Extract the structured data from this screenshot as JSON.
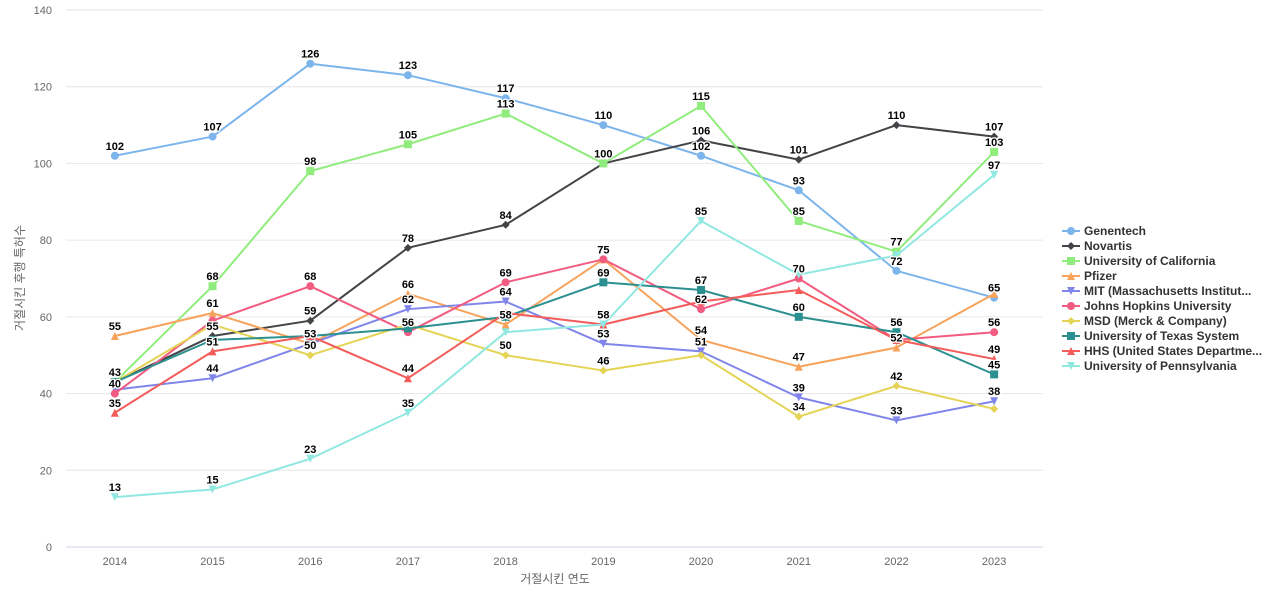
{
  "chart_data": {
    "type": "line",
    "title": "",
    "xlabel": "거절시킨 연도",
    "ylabel": "거절시킨 후행 특허수",
    "categories": [
      "2014",
      "2015",
      "2016",
      "2017",
      "2018",
      "2019",
      "2020",
      "2021",
      "2022",
      "2023"
    ],
    "ylim": [
      0,
      140
    ],
    "yticks": [
      0,
      20,
      40,
      60,
      80,
      100,
      120,
      140
    ],
    "grid": true,
    "legend_position": "right",
    "series": [
      {
        "name": "Genentech",
        "color": "#7cb5ec",
        "marker": "circle",
        "values": [
          102,
          107,
          126,
          123,
          117,
          110,
          102,
          93,
          72,
          65
        ]
      },
      {
        "name": "Novartis",
        "color": "#434348",
        "marker": "diamond",
        "values": [
          43,
          55,
          59,
          78,
          84,
          100,
          106,
          101,
          110,
          107
        ]
      },
      {
        "name": "University of California",
        "color": "#90ed7d",
        "marker": "square",
        "values": [
          43,
          68,
          98,
          105,
          113,
          100,
          115,
          85,
          77,
          103
        ]
      },
      {
        "name": "Pfizer",
        "color": "#f7a35c",
        "marker": "triangle",
        "values": [
          55,
          61,
          53,
          66,
          58,
          75,
          54,
          47,
          52,
          66
        ]
      },
      {
        "name": "MIT (Massachusetts Institut...",
        "color": "#8085e9",
        "marker": "triangle-down",
        "values": [
          41,
          44,
          53,
          62,
          64,
          53,
          51,
          39,
          33,
          38
        ]
      },
      {
        "name": "Johns Hopkins University",
        "color": "#f15c80",
        "marker": "circle",
        "values": [
          40,
          59,
          68,
          56,
          69,
          75,
          62,
          70,
          54,
          56
        ]
      },
      {
        "name": "MSD (Merck & Company)",
        "color": "#e4d354",
        "marker": "diamond",
        "values": [
          43,
          58,
          50,
          58,
          50,
          46,
          50,
          34,
          42,
          36
        ]
      },
      {
        "name": "University of Texas System",
        "color": "#2b908f",
        "marker": "square",
        "values": [
          43,
          54,
          55,
          57,
          60,
          69,
          67,
          60,
          56,
          45
        ]
      },
      {
        "name": "HHS (United States Departme...",
        "color": "#f45b5b",
        "marker": "triangle",
        "values": [
          35,
          51,
          55,
          44,
          61,
          58,
          64,
          67,
          54,
          49
        ]
      },
      {
        "name": "University of Pennsylvania",
        "color": "#91e8e1",
        "marker": "triangle-down",
        "values": [
          13,
          15,
          23,
          35,
          56,
          58,
          85,
          71,
          76,
          97
        ]
      }
    ],
    "data_labels": [
      {
        "x": "2014",
        "value": 102,
        "text": "102"
      },
      {
        "x": "2014",
        "value": 55,
        "text": "55"
      },
      {
        "x": "2014",
        "value": 43,
        "text": "43"
      },
      {
        "x": "2014",
        "value": 40,
        "text": "40"
      },
      {
        "x": "2014",
        "value": 35,
        "text": "35"
      },
      {
        "x": "2014",
        "value": 13,
        "text": "13"
      },
      {
        "x": "2015",
        "value": 107,
        "text": "107"
      },
      {
        "x": "2015",
        "value": 68,
        "text": "68"
      },
      {
        "x": "2015",
        "value": 61,
        "text": "61"
      },
      {
        "x": "2015",
        "value": 55,
        "text": "55"
      },
      {
        "x": "2015",
        "value": 51,
        "text": "51"
      },
      {
        "x": "2015",
        "value": 44,
        "text": "44"
      },
      {
        "x": "2015",
        "value": 15,
        "text": "15"
      },
      {
        "x": "2016",
        "value": 126,
        "text": "126"
      },
      {
        "x": "2016",
        "value": 98,
        "text": "98"
      },
      {
        "x": "2016",
        "value": 68,
        "text": "68"
      },
      {
        "x": "2016",
        "value": 59,
        "text": "59"
      },
      {
        "x": "2016",
        "value": 53,
        "text": "53"
      },
      {
        "x": "2016",
        "value": 50,
        "text": "50"
      },
      {
        "x": "2016",
        "value": 23,
        "text": "23"
      },
      {
        "x": "2017",
        "value": 123,
        "text": "123"
      },
      {
        "x": "2017",
        "value": 105,
        "text": "105"
      },
      {
        "x": "2017",
        "value": 78,
        "text": "78"
      },
      {
        "x": "2017",
        "value": 66,
        "text": "66"
      },
      {
        "x": "2017",
        "value": 62,
        "text": "62"
      },
      {
        "x": "2017",
        "value": 56,
        "text": "56"
      },
      {
        "x": "2017",
        "value": 44,
        "text": "44"
      },
      {
        "x": "2017",
        "value": 35,
        "text": "35"
      },
      {
        "x": "2018",
        "value": 117,
        "text": "117"
      },
      {
        "x": "2018",
        "value": 113,
        "text": "113"
      },
      {
        "x": "2018",
        "value": 84,
        "text": "84"
      },
      {
        "x": "2018",
        "value": 69,
        "text": "69"
      },
      {
        "x": "2018",
        "value": 64,
        "text": "64"
      },
      {
        "x": "2018",
        "value": 58,
        "text": "58"
      },
      {
        "x": "2018",
        "value": 50,
        "text": "50"
      },
      {
        "x": "2019",
        "value": 110,
        "text": "110"
      },
      {
        "x": "2019",
        "value": 100,
        "text": "100"
      },
      {
        "x": "2019",
        "value": 75,
        "text": "75"
      },
      {
        "x": "2019",
        "value": 69,
        "text": "69"
      },
      {
        "x": "2019",
        "value": 58,
        "text": "58"
      },
      {
        "x": "2019",
        "value": 53,
        "text": "53"
      },
      {
        "x": "2019",
        "value": 46,
        "text": "46"
      },
      {
        "x": "2020",
        "value": 115,
        "text": "115"
      },
      {
        "x": "2020",
        "value": 106,
        "text": "106"
      },
      {
        "x": "2020",
        "value": 102,
        "text": "102"
      },
      {
        "x": "2020",
        "value": 85,
        "text": "85"
      },
      {
        "x": "2020",
        "value": 67,
        "text": "67"
      },
      {
        "x": "2020",
        "value": 62,
        "text": "62"
      },
      {
        "x": "2020",
        "value": 54,
        "text": "54"
      },
      {
        "x": "2020",
        "value": 51,
        "text": "51"
      },
      {
        "x": "2021",
        "value": 101,
        "text": "101"
      },
      {
        "x": "2021",
        "value": 93,
        "text": "93"
      },
      {
        "x": "2021",
        "value": 85,
        "text": "85"
      },
      {
        "x": "2021",
        "value": 70,
        "text": "70"
      },
      {
        "x": "2021",
        "value": 60,
        "text": "60"
      },
      {
        "x": "2021",
        "value": 47,
        "text": "47"
      },
      {
        "x": "2021",
        "value": 39,
        "text": "39"
      },
      {
        "x": "2021",
        "value": 34,
        "text": "34"
      },
      {
        "x": "2022",
        "value": 110,
        "text": "110"
      },
      {
        "x": "2022",
        "value": 77,
        "text": "77"
      },
      {
        "x": "2022",
        "value": 72,
        "text": "72"
      },
      {
        "x": "2022",
        "value": 56,
        "text": "56"
      },
      {
        "x": "2022",
        "value": 52,
        "text": "52"
      },
      {
        "x": "2022",
        "value": 42,
        "text": "42"
      },
      {
        "x": "2022",
        "value": 33,
        "text": "33"
      },
      {
        "x": "2023",
        "value": 107,
        "text": "107"
      },
      {
        "x": "2023",
        "value": 103,
        "text": "103"
      },
      {
        "x": "2023",
        "value": 97,
        "text": "97"
      },
      {
        "x": "2023",
        "value": 65,
        "text": "65"
      },
      {
        "x": "2023",
        "value": 56,
        "text": "56"
      },
      {
        "x": "2023",
        "value": 49,
        "text": "49"
      },
      {
        "x": "2023",
        "value": 45,
        "text": "45"
      },
      {
        "x": "2023",
        "value": 38,
        "text": "38"
      }
    ]
  }
}
